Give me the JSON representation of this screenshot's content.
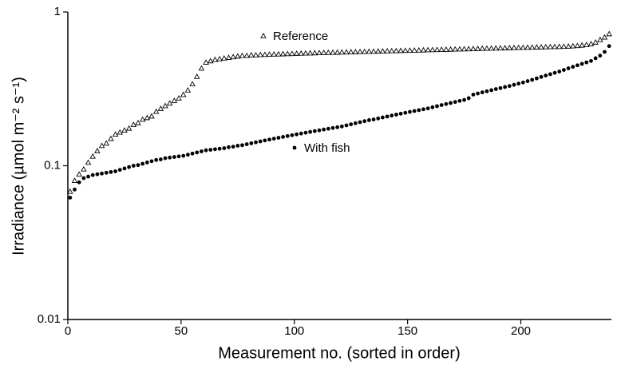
{
  "chart_data": {
    "type": "scatter",
    "xlabel": "Measurement no. (sorted in order)",
    "ylabel": "Irradiance (µmol m⁻² s⁻¹)",
    "xlim": [
      0,
      240
    ],
    "xticks": [
      0,
      50,
      100,
      150,
      200
    ],
    "ylim": [
      0.01,
      1
    ],
    "yticks": [
      0.01,
      0.1,
      1
    ],
    "yscale": "log",
    "x": [
      1,
      3,
      5,
      7,
      9,
      11,
      13,
      15,
      17,
      19,
      21,
      23,
      25,
      27,
      29,
      31,
      33,
      35,
      37,
      39,
      41,
      43,
      45,
      47,
      49,
      51,
      53,
      55,
      57,
      59,
      61,
      63,
      65,
      67,
      69,
      71,
      73,
      75,
      77,
      79,
      81,
      83,
      85,
      87,
      89,
      91,
      93,
      95,
      97,
      99,
      101,
      103,
      105,
      107,
      109,
      111,
      113,
      115,
      117,
      119,
      121,
      123,
      125,
      127,
      129,
      131,
      133,
      135,
      137,
      139,
      141,
      143,
      145,
      147,
      149,
      151,
      153,
      155,
      157,
      159,
      161,
      163,
      165,
      167,
      169,
      171,
      173,
      175,
      177,
      179,
      181,
      183,
      185,
      187,
      189,
      191,
      193,
      195,
      197,
      199,
      201,
      203,
      205,
      207,
      209,
      211,
      213,
      215,
      217,
      219,
      221,
      223,
      225,
      227,
      229,
      231,
      233,
      235,
      237,
      239
    ],
    "series": [
      {
        "name": "Reference",
        "color": "#000000",
        "marker": "triangle-open",
        "values": [
          0.068,
          0.08,
          0.088,
          0.095,
          0.105,
          0.115,
          0.125,
          0.135,
          0.14,
          0.15,
          0.16,
          0.165,
          0.17,
          0.175,
          0.185,
          0.19,
          0.2,
          0.205,
          0.21,
          0.225,
          0.235,
          0.245,
          0.255,
          0.265,
          0.275,
          0.29,
          0.31,
          0.34,
          0.38,
          0.43,
          0.47,
          0.48,
          0.49,
          0.495,
          0.5,
          0.505,
          0.51,
          0.515,
          0.52,
          0.52,
          0.525,
          0.525,
          0.527,
          0.528,
          0.53,
          0.531,
          0.532,
          0.533,
          0.534,
          0.535,
          0.537,
          0.538,
          0.539,
          0.54,
          0.541,
          0.542,
          0.543,
          0.544,
          0.545,
          0.546,
          0.547,
          0.548,
          0.549,
          0.55,
          0.551,
          0.552,
          0.553,
          0.554,
          0.555,
          0.556,
          0.557,
          0.558,
          0.559,
          0.56,
          0.561,
          0.562,
          0.563,
          0.564,
          0.565,
          0.566,
          0.567,
          0.568,
          0.569,
          0.57,
          0.571,
          0.572,
          0.573,
          0.574,
          0.575,
          0.576,
          0.577,
          0.578,
          0.579,
          0.58,
          0.581,
          0.582,
          0.583,
          0.584,
          0.585,
          0.586,
          0.587,
          0.588,
          0.589,
          0.59,
          0.591,
          0.592,
          0.593,
          0.594,
          0.595,
          0.596,
          0.598,
          0.6,
          0.603,
          0.607,
          0.612,
          0.62,
          0.635,
          0.66,
          0.685,
          0.72
        ]
      },
      {
        "name": "With fish",
        "color": "#000000",
        "marker": "circle",
        "values": [
          0.062,
          0.07,
          0.078,
          0.083,
          0.085,
          0.087,
          0.088,
          0.089,
          0.09,
          0.091,
          0.092,
          0.094,
          0.096,
          0.098,
          0.1,
          0.101,
          0.103,
          0.105,
          0.107,
          0.109,
          0.11,
          0.112,
          0.113,
          0.114,
          0.115,
          0.116,
          0.118,
          0.12,
          0.122,
          0.124,
          0.126,
          0.127,
          0.128,
          0.129,
          0.13,
          0.132,
          0.133,
          0.135,
          0.136,
          0.138,
          0.14,
          0.142,
          0.144,
          0.146,
          0.148,
          0.15,
          0.152,
          0.154,
          0.156,
          0.158,
          0.16,
          0.162,
          0.164,
          0.166,
          0.168,
          0.17,
          0.172,
          0.174,
          0.176,
          0.178,
          0.18,
          0.183,
          0.186,
          0.189,
          0.192,
          0.195,
          0.198,
          0.2,
          0.203,
          0.206,
          0.209,
          0.212,
          0.215,
          0.218,
          0.221,
          0.224,
          0.227,
          0.23,
          0.233,
          0.236,
          0.24,
          0.244,
          0.248,
          0.252,
          0.256,
          0.26,
          0.264,
          0.268,
          0.275,
          0.29,
          0.295,
          0.3,
          0.305,
          0.31,
          0.315,
          0.32,
          0.325,
          0.33,
          0.336,
          0.342,
          0.348,
          0.355,
          0.362,
          0.37,
          0.378,
          0.386,
          0.394,
          0.402,
          0.41,
          0.42,
          0.43,
          0.44,
          0.45,
          0.46,
          0.47,
          0.48,
          0.5,
          0.52,
          0.55,
          0.6
        ]
      }
    ]
  }
}
